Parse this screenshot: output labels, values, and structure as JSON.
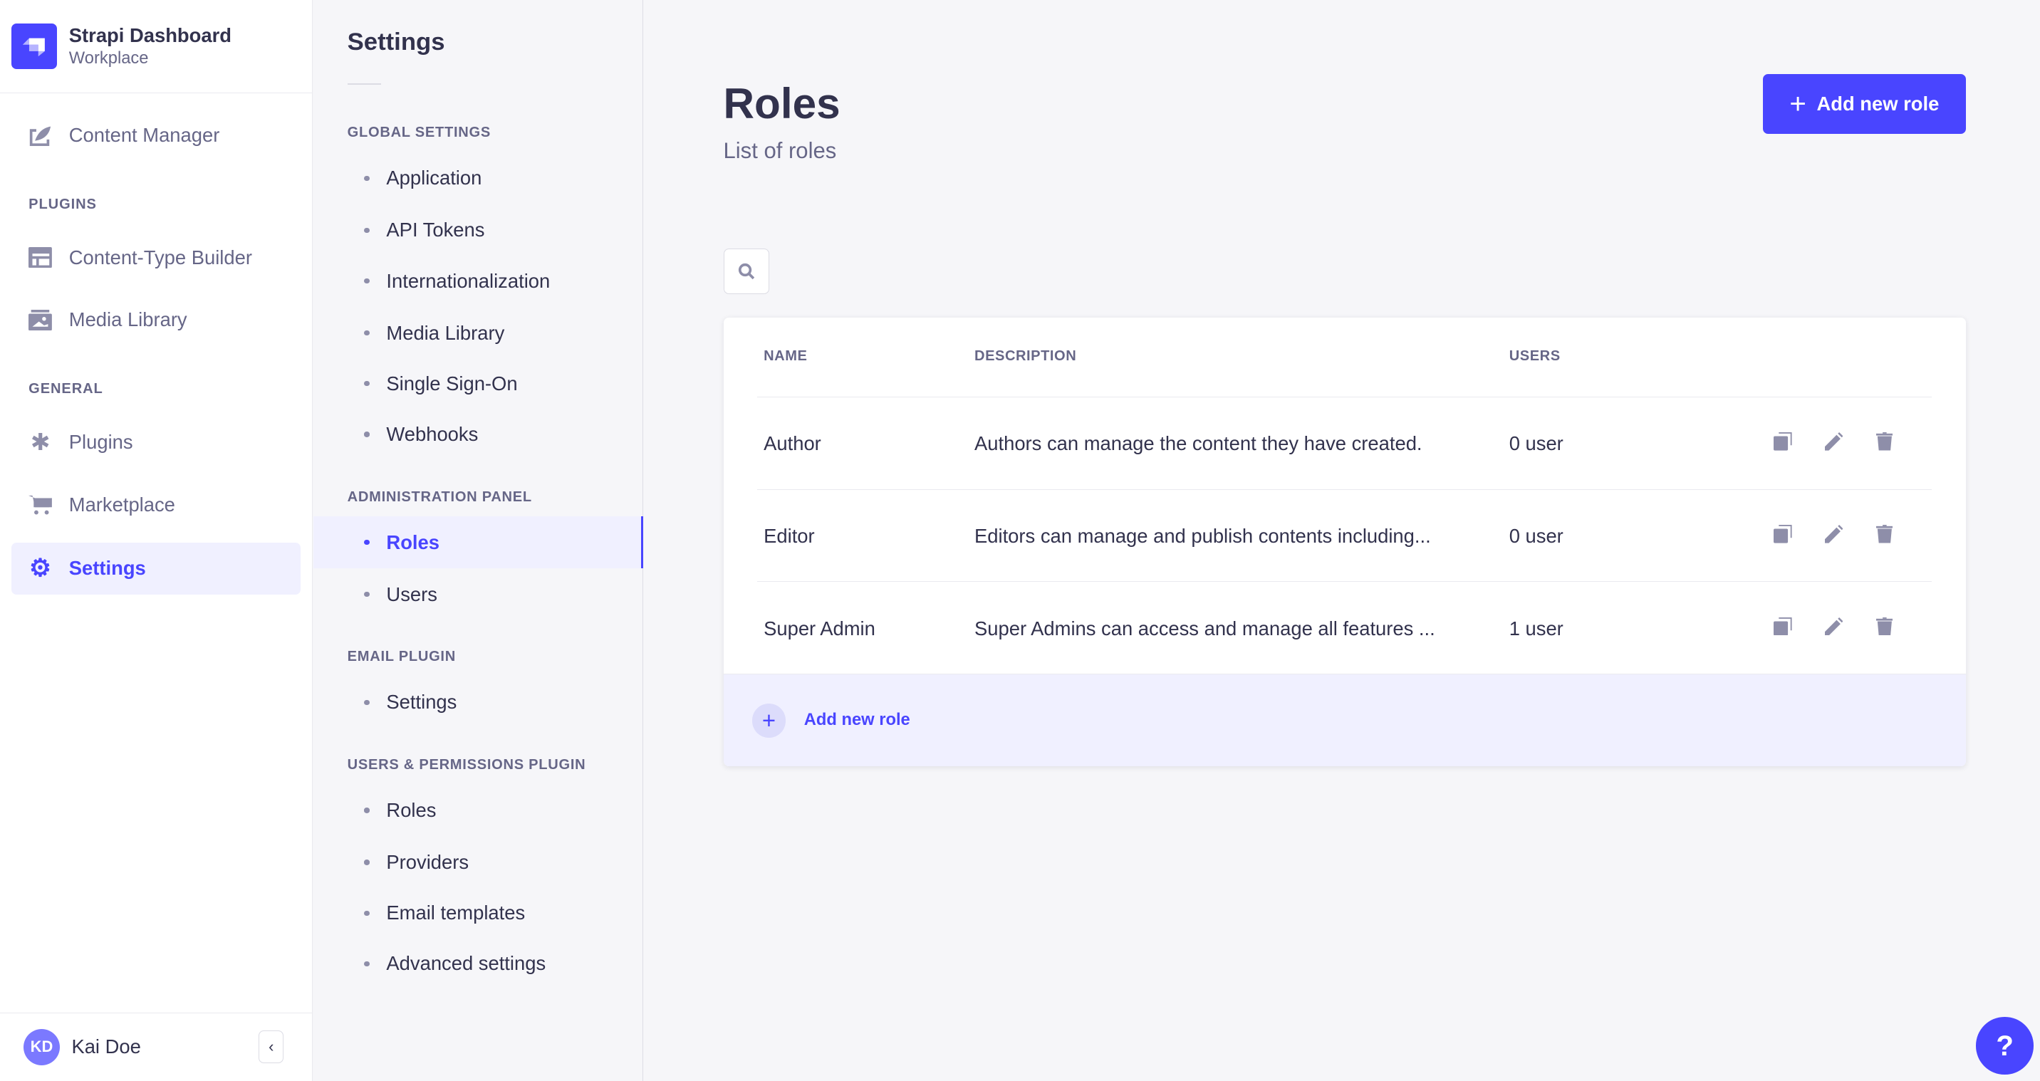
{
  "brand": {
    "title": "Strapi Dashboard",
    "subtitle": "Workplace"
  },
  "nav": {
    "content_manager": "Content Manager",
    "plugins_section": "PLUGINS",
    "ctb": "Content-Type Builder",
    "media": "Media Library",
    "general_section": "GENERAL",
    "plugins": "Plugins",
    "marketplace": "Marketplace",
    "settings": "Settings"
  },
  "user": {
    "initials": "KD",
    "name": "Kai Doe"
  },
  "settings_nav": {
    "title": "Settings",
    "sections": [
      {
        "label": "GLOBAL SETTINGS",
        "items": [
          "Application",
          "API Tokens",
          "Internationalization",
          "Media Library",
          "Single Sign-On",
          "Webhooks"
        ]
      },
      {
        "label": "ADMINISTRATION PANEL",
        "items": [
          "Roles",
          "Users"
        ]
      },
      {
        "label": "EMAIL PLUGIN",
        "items": [
          "Settings"
        ]
      },
      {
        "label": "USERS & PERMISSIONS PLUGIN",
        "items": [
          "Roles",
          "Providers",
          "Email templates",
          "Advanced settings"
        ]
      }
    ],
    "active": "Roles"
  },
  "page": {
    "title": "Roles",
    "subtitle": "List of roles",
    "add_button": "Add new role"
  },
  "table": {
    "headers": [
      "NAME",
      "DESCRIPTION",
      "USERS"
    ],
    "rows": [
      {
        "name": "Author",
        "description": "Authors can manage the content they have created.",
        "users": "0 user"
      },
      {
        "name": "Editor",
        "description": "Editors can manage and publish contents including...",
        "users": "0 user"
      },
      {
        "name": "Super Admin",
        "description": "Super Admins can access and manage all features ...",
        "users": "1 user"
      }
    ],
    "footer_add": "Add new role"
  },
  "help": "?",
  "colors": {
    "accent": "#4945ff",
    "icon": "#8e8ea9"
  }
}
